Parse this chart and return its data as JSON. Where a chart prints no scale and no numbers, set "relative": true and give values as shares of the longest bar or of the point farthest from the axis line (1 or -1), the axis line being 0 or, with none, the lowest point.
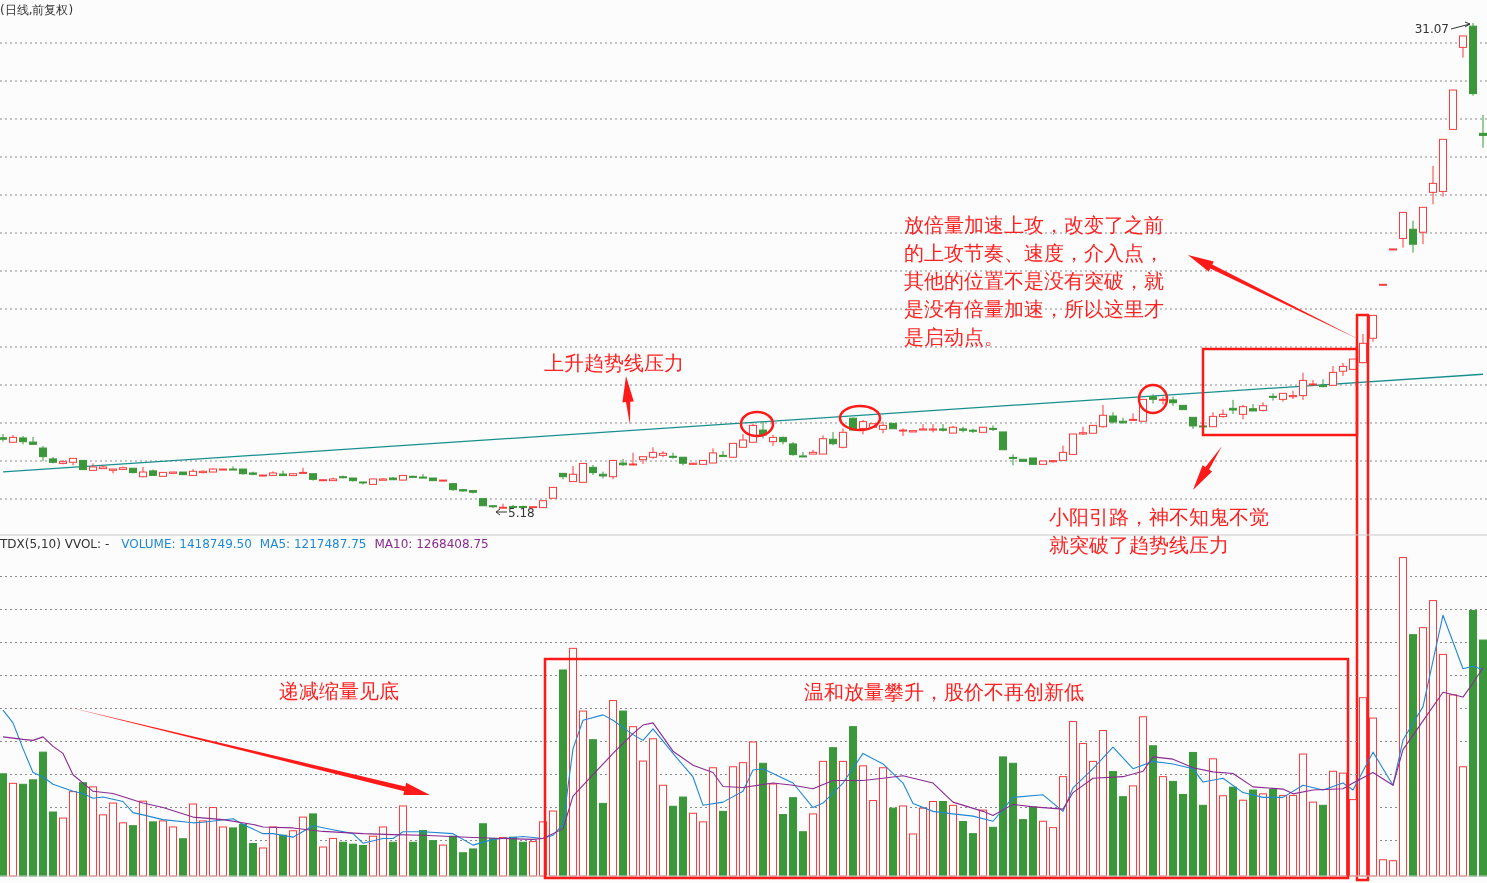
{
  "chart_data": [
    {
      "type": "candlestick",
      "title": "(日线,前复权)",
      "grid": true,
      "tick_labels": false,
      "categories": [
        null,
        null,
        null,
        null,
        null,
        null,
        null,
        null,
        null,
        null,
        null,
        null,
        null,
        null,
        null,
        null,
        null,
        null,
        null,
        null,
        null,
        null,
        null,
        null,
        null,
        null,
        null,
        null,
        null,
        null,
        null,
        null,
        null,
        null,
        null,
        null,
        null,
        null,
        null,
        null,
        null,
        null,
        null,
        null,
        null,
        null,
        null,
        null,
        null,
        null,
        null,
        null,
        null,
        null,
        null,
        null,
        null,
        null,
        null,
        null,
        null,
        null,
        null,
        null,
        null,
        null,
        null,
        null,
        null,
        null,
        null,
        null,
        null,
        null,
        null,
        null,
        null,
        null,
        null,
        null,
        null,
        null,
        null,
        null,
        null,
        null,
        null,
        null,
        null,
        null,
        null,
        null,
        null,
        null,
        null,
        null,
        null,
        null,
        null,
        null,
        null,
        null,
        null,
        null,
        null,
        null,
        null,
        null,
        null,
        null,
        null,
        null,
        null,
        null,
        null,
        null,
        null,
        null,
        null,
        null,
        null,
        null,
        null,
        null,
        null,
        null,
        null,
        null,
        null,
        null,
        null,
        null,
        null,
        null,
        null,
        null,
        null,
        null,
        null,
        null,
        null,
        null,
        null,
        null,
        null,
        null,
        null,
        null,
        null
      ],
      "ohlc": [
        [
          8.93,
          9.13,
          8.72,
          8.85
        ],
        [
          8.69,
          9.08,
          8.69,
          8.95
        ],
        [
          8.92,
          9.02,
          8.58,
          8.72
        ],
        [
          8.7,
          8.97,
          8.58,
          8.58
        ],
        [
          8.38,
          8.49,
          7.69,
          7.92
        ],
        [
          7.8,
          7.9,
          7.56,
          7.62
        ],
        [
          7.56,
          7.74,
          7.51,
          7.65
        ],
        [
          7.62,
          7.83,
          7.46,
          7.83
        ],
        [
          7.72,
          7.72,
          7.23,
          7.23
        ],
        [
          7.19,
          7.56,
          7.19,
          7.37
        ],
        [
          7.28,
          7.46,
          7.28,
          7.37
        ],
        [
          7.19,
          7.26,
          7.03,
          7.26
        ],
        [
          7.24,
          7.39,
          7.21,
          7.33
        ],
        [
          7.3,
          7.3,
          7.03,
          7.07
        ],
        [
          6.85,
          7.37,
          6.82,
          7.1
        ],
        [
          7.16,
          7.24,
          6.92,
          6.92
        ],
        [
          6.87,
          7.08,
          6.87,
          7.08
        ],
        [
          7.03,
          7.1,
          7.03,
          7.1
        ],
        [
          7.1,
          7.1,
          6.96,
          6.96
        ],
        [
          6.92,
          7.26,
          6.92,
          7.14
        ],
        [
          7.07,
          7.19,
          7.03,
          7.14
        ],
        [
          7.1,
          7.3,
          7.1,
          7.26
        ],
        [
          7.23,
          7.26,
          7.23,
          7.26
        ],
        [
          7.26,
          7.4,
          7.23,
          7.23
        ],
        [
          7.26,
          7.26,
          6.96,
          7.01
        ],
        [
          7.05,
          7.12,
          6.92,
          6.98
        ],
        [
          6.91,
          6.94,
          6.87,
          6.94
        ],
        [
          6.92,
          7.14,
          6.92,
          7.05
        ],
        [
          6.99,
          7.17,
          6.91,
          6.91
        ],
        [
          6.91,
          7.05,
          6.91,
          7.01
        ],
        [
          7.05,
          7.33,
          7.05,
          7.08
        ],
        [
          7.01,
          7.01,
          6.64,
          6.71
        ],
        [
          6.64,
          6.73,
          6.64,
          6.69
        ],
        [
          6.64,
          6.8,
          6.64,
          6.73
        ],
        [
          6.85,
          6.91,
          6.76,
          6.8
        ],
        [
          6.78,
          6.78,
          6.59,
          6.64
        ],
        [
          6.57,
          6.57,
          6.43,
          6.53
        ],
        [
          6.44,
          6.73,
          6.44,
          6.73
        ],
        [
          6.66,
          6.78,
          6.66,
          6.73
        ],
        [
          6.78,
          6.83,
          6.69,
          6.69
        ],
        [
          6.67,
          6.92,
          6.64,
          6.92
        ],
        [
          6.87,
          6.91,
          6.8,
          6.83
        ],
        [
          6.83,
          6.99,
          6.8,
          6.8
        ],
        [
          6.78,
          6.78,
          6.64,
          6.64
        ],
        [
          6.64,
          6.67,
          6.64,
          6.67
        ],
        [
          6.48,
          6.51,
          6.1,
          6.16
        ],
        [
          6.16,
          6.2,
          6.05,
          6.09
        ],
        [
          6.11,
          6.14,
          5.96,
          6.02
        ],
        [
          5.68,
          5.68,
          5.3,
          5.3
        ],
        [
          5.3,
          5.34,
          5.18,
          5.25
        ],
        [
          5.22,
          5.41,
          5.2,
          5.22
        ],
        [
          5.26,
          5.34,
          5.2,
          5.25
        ],
        [
          5.26,
          5.31,
          5.2,
          5.24
        ],
        [
          5.2,
          5.25,
          5.2,
          5.25
        ],
        [
          5.2,
          5.57,
          5.2,
          5.57
        ],
        [
          5.7,
          6.28,
          5.7,
          6.28
        ],
        [
          7.03,
          7.03,
          6.71,
          6.85
        ],
        [
          6.59,
          7.42,
          6.59,
          6.98
        ],
        [
          6.55,
          7.56,
          6.55,
          7.56
        ],
        [
          7.35,
          7.48,
          6.94,
          7.07
        ],
        [
          6.98,
          7.12,
          6.76,
          6.89
        ],
        [
          6.85,
          7.72,
          6.71,
          7.72
        ],
        [
          7.58,
          7.8,
          7.42,
          7.49
        ],
        [
          7.49,
          8.13,
          7.46,
          7.53
        ],
        [
          7.76,
          7.96,
          7.53,
          7.92
        ],
        [
          7.89,
          8.42,
          7.81,
          8.15
        ],
        [
          7.99,
          8.22,
          7.89,
          8.1
        ],
        [
          7.94,
          8.13,
          7.81,
          7.89
        ],
        [
          7.89,
          7.89,
          7.46,
          7.57
        ],
        [
          7.51,
          7.57,
          7.51,
          7.57
        ],
        [
          7.51,
          7.72,
          7.48,
          7.72
        ],
        [
          7.58,
          8.37,
          7.58,
          8.12
        ],
        [
          7.99,
          8.22,
          7.94,
          7.94
        ],
        [
          7.89,
          8.63,
          7.89,
          8.63
        ],
        [
          8.42,
          9.13,
          8.42,
          8.81
        ],
        [
          8.69,
          9.7,
          8.69,
          9.59
        ],
        [
          9.34,
          9.79,
          8.9,
          9.08
        ],
        [
          8.72,
          9.08,
          8.49,
          8.95
        ],
        [
          8.95,
          8.99,
          8.58,
          8.72
        ],
        [
          8.6,
          8.7,
          7.97,
          8.03
        ],
        [
          7.96,
          8.17,
          7.89,
          7.92
        ],
        [
          8.06,
          8.28,
          8.06,
          8.15
        ],
        [
          8.06,
          9.06,
          8.06,
          8.88
        ],
        [
          8.85,
          9.24,
          8.53,
          8.61
        ],
        [
          8.42,
          9.43,
          8.36,
          9.22
        ],
        [
          9.97,
          10.02,
          9.34,
          9.34
        ],
        [
          9.43,
          9.88,
          9.11,
          9.79
        ],
        [
          9.49,
          9.68,
          9.49,
          9.68
        ],
        [
          9.38,
          9.79,
          9.17,
          9.59
        ],
        [
          9.7,
          9.7,
          9.41,
          9.41
        ],
        [
          9.29,
          9.43,
          9.02,
          9.34
        ],
        [
          9.24,
          9.31,
          9.24,
          9.31
        ],
        [
          9.34,
          9.66,
          9.34,
          9.4
        ],
        [
          9.34,
          9.66,
          9.22,
          9.4
        ],
        [
          9.4,
          9.66,
          9.26,
          9.33
        ],
        [
          9.18,
          9.56,
          9.18,
          9.49
        ],
        [
          9.4,
          9.52,
          9.22,
          9.33
        ],
        [
          9.33,
          9.42,
          9.18,
          9.29
        ],
        [
          9.22,
          9.49,
          9.22,
          9.49
        ],
        [
          9.43,
          9.59,
          9.29,
          9.4
        ],
        [
          9.24,
          9.24,
          8.29,
          8.29
        ],
        [
          7.88,
          8.04,
          7.46,
          7.83
        ],
        [
          7.78,
          7.78,
          7.67,
          7.67
        ],
        [
          7.85,
          7.85,
          7.51,
          7.51
        ],
        [
          7.51,
          7.69,
          7.51,
          7.69
        ],
        [
          7.65,
          7.74,
          7.6,
          7.71
        ],
        [
          7.72,
          8.51,
          7.72,
          8.15
        ],
        [
          8.04,
          9.13,
          8.04,
          9.13
        ],
        [
          9.13,
          9.52,
          9.08,
          9.2
        ],
        [
          9.17,
          9.59,
          9.17,
          9.59
        ],
        [
          9.52,
          10.68,
          9.47,
          10.13
        ],
        [
          10.09,
          10.29,
          9.68,
          9.77
        ],
        [
          9.81,
          10.0,
          9.68,
          9.73
        ],
        [
          9.86,
          10.23,
          9.86,
          9.91
        ],
        [
          9.81,
          10.98,
          9.81,
          10.98
        ],
        [
          11.12,
          11.25,
          10.75,
          10.98
        ],
        [
          10.93,
          11.12,
          10.71,
          10.98
        ],
        [
          10.95,
          11.12,
          10.63,
          10.8
        ],
        [
          10.66,
          10.66,
          10.43,
          10.43
        ],
        [
          10.02,
          10.02,
          9.4,
          9.56
        ],
        [
          9.56,
          9.6,
          9.52,
          9.54
        ],
        [
          9.52,
          10.29,
          9.52,
          10.07
        ],
        [
          10.06,
          10.45,
          10.0,
          10.18
        ],
        [
          10.5,
          10.95,
          10.2,
          10.41
        ],
        [
          10.18,
          10.68,
          9.91,
          10.59
        ],
        [
          10.48,
          10.73,
          10.36,
          10.36
        ],
        [
          10.39,
          10.82,
          10.34,
          10.64
        ],
        [
          11.14,
          11.3,
          10.91,
          11.1
        ],
        [
          10.98,
          11.3,
          10.86,
          11.3
        ],
        [
          11.12,
          11.44,
          11.0,
          11.18
        ],
        [
          11.18,
          12.4,
          10.95,
          11.99
        ],
        [
          11.75,
          12.01,
          11.71,
          11.8
        ],
        [
          11.73,
          12.05,
          11.62,
          11.66
        ],
        [
          11.73,
          12.76,
          11.73,
          12.42
        ],
        [
          12.48,
          12.92,
          12.23,
          12.74
        ],
        [
          12.58,
          13.13,
          12.58,
          13.13
        ],
        [
          12.94,
          14.47,
          12.9,
          13.97
        ],
        [
          14.24,
          15.46,
          14.06,
          15.46
        ],
        [
          17.12,
          17.12,
          17.12,
          17.12
        ],
        [
          19.01,
          19.01,
          19.01,
          19.01
        ],
        [
          19.57,
          20.96,
          19.08,
          20.96
        ],
        [
          20.06,
          20.52,
          18.81,
          19.26
        ],
        [
          19.9,
          21.23,
          19.26,
          21.23
        ],
        [
          22.03,
          23.44,
          21.39,
          22.51
        ],
        [
          22.08,
          24.86,
          21.8,
          24.86
        ],
        [
          25.39,
          27.49,
          25.39,
          27.49
        ],
        [
          29.77,
          30.38,
          29.22,
          30.38
        ],
        [
          30.9,
          31.07,
          27.19,
          27.3
        ],
        [
          25.18,
          26.16,
          24.41,
          25.07
        ]
      ],
      "series": [
        {
          "type": "line",
          "color": "#178f8f",
          "values": [
            7.11,
            null,
            null,
            null,
            null,
            null,
            null,
            null,
            null,
            null,
            null,
            null,
            null,
            null,
            null,
            null,
            null,
            null,
            null,
            null,
            null,
            null,
            null,
            null,
            null,
            null,
            null,
            null,
            null,
            null,
            null,
            null,
            null,
            null,
            null,
            null,
            null,
            null,
            null,
            null,
            null,
            null,
            null,
            null,
            null,
            null,
            null,
            null,
            null,
            null,
            null,
            null,
            null,
            null,
            null,
            null,
            null,
            null,
            null,
            null,
            null,
            null,
            null,
            null,
            null,
            null,
            null,
            null,
            null,
            null,
            null,
            null,
            null,
            null,
            null,
            null,
            null,
            null,
            null,
            null,
            null,
            null,
            null,
            null,
            null,
            null,
            null,
            null,
            null,
            null,
            null,
            null,
            null,
            null,
            null,
            null,
            null,
            null,
            null,
            null,
            null,
            null,
            null,
            null,
            null,
            null,
            null,
            null,
            null,
            null,
            null,
            null,
            null,
            null,
            null,
            null,
            null,
            null,
            null,
            null,
            null,
            null,
            null,
            null,
            null,
            null,
            null,
            null,
            null,
            null,
            null,
            null,
            null,
            null,
            null,
            null,
            null,
            null,
            null,
            null,
            null,
            null,
            null,
            null,
            null,
            null,
            null,
            null,
            12.32
          ]
        }
      ],
      "annotations": [
        "31.07",
        "5.18",
        "放倍量加速上攻，改变了之前的上攻节奏、速度，介入点，其他的位置不是没有突破，就是没有倍量加速，所以这里才是启动点。",
        "上升趋势线压力",
        "小阳引路，神不知鬼不觉就突破了趋势线压力"
      ]
    },
    {
      "type": "bar",
      "title": "TDX(5,10) VVOL: -",
      "relative": true,
      "grid": true,
      "tick_labels": false,
      "categories": [
        null,
        null,
        null,
        null,
        null,
        null,
        null,
        null,
        null,
        null,
        null,
        null,
        null,
        null,
        null,
        null,
        null,
        null,
        null,
        null,
        null,
        null,
        null,
        null,
        null,
        null,
        null,
        null,
        null,
        null,
        null,
        null,
        null,
        null,
        null,
        null,
        null,
        null,
        null,
        null,
        null,
        null,
        null,
        null,
        null,
        null,
        null,
        null,
        null,
        null,
        null,
        null,
        null,
        null,
        null,
        null,
        null,
        null,
        null,
        null,
        null,
        null,
        null,
        null,
        null,
        null,
        null,
        null,
        null,
        null,
        null,
        null,
        null,
        null,
        null,
        null,
        null,
        null,
        null,
        null,
        null,
        null,
        null,
        null,
        null,
        null,
        null,
        null,
        null,
        null,
        null,
        null,
        null,
        null,
        null,
        null,
        null,
        null,
        null,
        null,
        null,
        null,
        null,
        null,
        null,
        null,
        null,
        null,
        null,
        null,
        null,
        null,
        null,
        null,
        null,
        null,
        null,
        null,
        null,
        null,
        null,
        null,
        null,
        null,
        null,
        null,
        null,
        null,
        null,
        null,
        null,
        null,
        null,
        null,
        null,
        null,
        null,
        null,
        null,
        null,
        null,
        null,
        null,
        null,
        null,
        null,
        null,
        null,
        null
      ],
      "series": [
        {
          "values": [
            0.321,
            0.291,
            0.288,
            0.302,
            0.389,
            0.201,
            0.182,
            0.265,
            0.293,
            0.28,
            0.192,
            0.229,
            0.167,
            0.158,
            0.235,
            0.17,
            0.173,
            0.154,
            0.117,
            0.226,
            0.173,
            0.215,
            0.154,
            0.151,
            0.162,
            0.102,
            0.088,
            0.154,
            0.128,
            0.142,
            0.185,
            0.195,
            0.091,
            0.118,
            0.106,
            0.1,
            0.096,
            0.125,
            0.154,
            0.106,
            0.22,
            0.106,
            0.143,
            0.111,
            0.097,
            0.125,
            0.073,
            0.085,
            0.164,
            0.118,
            0.121,
            0.122,
            0.106,
            0.108,
            0.17,
            0.204,
            0.647,
            0.715,
            0.518,
            0.428,
            0.228,
            0.551,
            0.518,
            0.469,
            0.361,
            0.431,
            0.285,
            0.219,
            0.248,
            0.197,
            0.17,
            0.34,
            0.203,
            0.343,
            0.356,
            0.421,
            0.354,
            0.289,
            0.193,
            0.246,
            0.139,
            0.195,
            0.36,
            0.403,
            0.36,
            0.469,
            0.346,
            0.237,
            0.34,
            0.213,
            0.22,
            0.132,
            0.213,
            0.234,
            0.234,
            0.222,
            0.171,
            0.133,
            0.207,
            0.153,
            0.374,
            0.354,
            0.177,
            0.217,
            0.172,
            0.152,
            0.312,
            0.485,
            0.416,
            0.36,
            0.457,
            0.328,
            0.249,
            0.283,
            0.5,
            0.409,
            0.312,
            0.297,
            0.256,
            0.388,
            0.222,
            0.368,
            0.252,
            0.279,
            0.238,
            0.27,
            0.258,
            0.273,
            0.253,
            0.253,
            0.383,
            0.232,
            0.222,
            0.329,
            0.323,
            0.24,
            0.56,
            0.496,
            0.051,
            0.048,
            1.0,
            0.758,
            0.78,
            0.865,
            0.696,
            0.569,
            0.343,
            0.834,
            0.741
          ],
          "colors": [
            "#3a983a",
            "#ff3b3b",
            "#3a983a",
            "#3a983a",
            "#3a983a",
            "#3a983a",
            "#ff3b3b",
            "#ff3b3b",
            "#3a983a",
            "#ff3b3b",
            "#ff3b3b",
            "#ff3b3b",
            "#ff3b3b",
            "#3a983a",
            "#ff3b3b",
            "#3a983a",
            "#ff3b3b",
            "#ff3b3b",
            "#3a983a",
            "#ff3b3b",
            "#ff3b3b",
            "#ff3b3b",
            "#ff3b3b",
            "#3a983a",
            "#3a983a",
            "#3a983a",
            "#ff3b3b",
            "#ff3b3b",
            "#3a983a",
            "#ff3b3b",
            "#ff3b3b",
            "#3a983a",
            "#ff3b3b",
            "#ff3b3b",
            "#3a983a",
            "#3a983a",
            "#3a983a",
            "#ff3b3b",
            "#ff3b3b",
            "#3a983a",
            "#ff3b3b",
            "#3a983a",
            "#3a983a",
            "#3a983a",
            "#ff3b3b",
            "#3a983a",
            "#3a983a",
            "#3a983a",
            "#3a983a",
            "#3a983a",
            "#ff3b3b",
            "#3a983a",
            "#3a983a",
            "#ff3b3b",
            "#ff3b3b",
            "#ff3b3b",
            "#3a983a",
            "#ff3b3b",
            "#ff3b3b",
            "#3a983a",
            "#3a983a",
            "#ff3b3b",
            "#3a983a",
            "#ff3b3b",
            "#ff3b3b",
            "#ff3b3b",
            "#ff3b3b",
            "#3a983a",
            "#3a983a",
            "#ff3b3b",
            "#ff3b3b",
            "#ff3b3b",
            "#3a983a",
            "#ff3b3b",
            "#ff3b3b",
            "#ff3b3b",
            "#3a983a",
            "#ff3b3b",
            "#3a983a",
            "#3a983a",
            "#3a983a",
            "#ff3b3b",
            "#ff3b3b",
            "#3a983a",
            "#ff3b3b",
            "#3a983a",
            "#ff3b3b",
            "#ff3b3b",
            "#ff3b3b",
            "#3a983a",
            "#ff3b3b",
            "#ff3b3b",
            "#ff3b3b",
            "#ff3b3b",
            "#3a983a",
            "#ff3b3b",
            "#3a983a",
            "#3a983a",
            "#ff3b3b",
            "#3a983a",
            "#3a983a",
            "#3a983a",
            "#3a983a",
            "#3a983a",
            "#ff3b3b",
            "#ff3b3b",
            "#ff3b3b",
            "#ff3b3b",
            "#ff3b3b",
            "#ff3b3b",
            "#ff3b3b",
            "#3a983a",
            "#3a983a",
            "#ff3b3b",
            "#ff3b3b",
            "#3a983a",
            "#ff3b3b",
            "#3a983a",
            "#3a983a",
            "#3a983a",
            "#3a983a",
            "#ff3b3b",
            "#ff3b3b",
            "#3a983a",
            "#ff3b3b",
            "#3a983a",
            "#ff3b3b",
            "#3a983a",
            "#ff3b3b",
            "#ff3b3b",
            "#ff3b3b",
            "#ff3b3b",
            "#3a983a",
            "#ff3b3b",
            "#ff3b3b",
            "#ff3b3b",
            "#ff3b3b",
            "#ff3b3b",
            "#ff3b3b",
            "#ff3b3b",
            "#ff3b3b",
            "#3a983a",
            "#ff3b3b",
            "#ff3b3b",
            "#ff3b3b",
            "#ff3b3b",
            "#ff3b3b",
            "#3a983a",
            "#3a983a"
          ]
        },
        {
          "type": "line",
          "name": "MA5: 1217487.75",
          "color": "#1e88d6",
          "values": [
            0.521,
            0.481,
            0.4,
            0.325,
            0.311,
            0.288,
            null,
            0.266,
            0.259,
            0.244,
            0.248,
            null,
            0.234,
            0.199,
            0.192,
            null,
            0.177,
            null,
            null,
            0.167,
            0.169,
            null,
            null,
            0.18,
            0.162,
            null,
            0.133,
            0.133,
            null,
            0.122,
            null,
            0.158,
            null,
            0.145,
            null,
            0.133,
            0.103,
            null,
            0.118,
            0.118,
            0.139,
            null,
            0.139,
            null,
            null,
            0.133,
            null,
            0.097,
            null,
            0.115,
            null,
            null,
            0.124,
            null,
            0.118,
            0.128,
            0.162,
            0.4,
            0.489,
            null,
            0.506,
            0.489,
            null,
            0.444,
            0.426,
            0.462,
            null,
            0.385,
            null,
            0.311,
            0.222,
            null,
            0.232,
            null,
            0.266,
            0.333,
            0.337,
            null,
            null,
            0.292,
            null,
            0.215,
            0.229,
            null,
            0.292,
            null,
            0.385,
            null,
            0.352,
            null,
            0.292,
            0.228,
            null,
            0.203,
            null,
            0.195,
            null,
            0.188,
            null,
            0.172,
            null,
            0.247,
            null,
            null,
            0.255,
            null,
            0.203,
            0.277,
            null,
            0.337,
            null,
            0.405,
            null,
            0.337,
            null,
            0.36,
            null,
            0.352,
            null,
            0.337,
            0.295,
            null,
            0.307,
            null,
            0.262,
            null,
            0.247,
            null,
            0.247,
            null,
            0.285,
            null,
            0.27,
            null,
            0.292,
            0.27,
            null,
            0.389,
            null,
            0.285,
            0.427,
            null,
            0.532,
            null,
            0.819,
            null,
            0.651,
            0.659,
            0.648
          ]
        },
        {
          "type": "line",
          "name": "MA10: 1268408.75",
          "color": "#8b2a92",
          "values": [
            0.437,
            null,
            0.429,
            0.426,
            0.437,
            0.407,
            0.385,
            0.318,
            null,
            0.266,
            null,
            0.259,
            null,
            null,
            0.229,
            null,
            0.215,
            null,
            null,
            0.185,
            null,
            null,
            0.177,
            null,
            null,
            0.162,
            0.154,
            null,
            null,
            0.151,
            null,
            null,
            0.14,
            null,
            null,
            null,
            0.133,
            null,
            null,
            0.13,
            null,
            null,
            0.128,
            null,
            null,
            null,
            null,
            0.121,
            null,
            null,
            0.118,
            null,
            null,
            0.115,
            0.118,
            null,
            0.148,
            0.251,
            null,
            0.318,
            null,
            0.385,
            null,
            0.447,
            0.474,
            0.481,
            null,
            0.392,
            null,
            0.348,
            null,
            0.325,
            0.281,
            null,
            0.278,
            null,
            null,
            0.292,
            null,
            0.285,
            null,
            0.274,
            null,
            0.3,
            null,
            null,
            0.3,
            null,
            0.307,
            null,
            0.315,
            null,
            null,
            0.292,
            null,
            0.232,
            null,
            null,
            0.203,
            0.19,
            null,
            0.225,
            null,
            0.217,
            null,
            null,
            0.21,
            0.262,
            null,
            0.307,
            null,
            null,
            0.312,
            null,
            0.329,
            0.374,
            null,
            0.367,
            null,
            0.34,
            null,
            0.327,
            null,
            0.322,
            null,
            0.28,
            null,
            null,
            0.273,
            0.258,
            null,
            0.27,
            null,
            null,
            0.274,
            0.292,
            null,
            0.325,
            null,
            0.285,
            0.397,
            null,
            0.487,
            null,
            0.577,
            null,
            0.562,
            0.606,
            0.654
          ]
        }
      ],
      "annotations": [
        "VOLUME: 1418749.50",
        "递减缩量见底",
        "温和放量攀升，股价不再创新低"
      ]
    }
  ]
}
